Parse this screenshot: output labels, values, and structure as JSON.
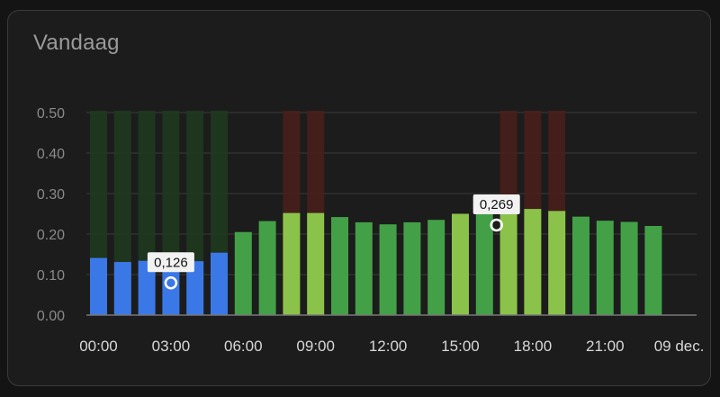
{
  "card": {
    "title": "Vandaag"
  },
  "chart_data": {
    "type": "bar",
    "title": "Vandaag",
    "ylim": [
      0,
      0.5
    ],
    "yticks": [
      "0.00",
      "0.10",
      "0.20",
      "0.30",
      "0.40",
      "0.50"
    ],
    "xtick_labels": [
      "00:00",
      "03:00",
      "06:00",
      "09:00",
      "12:00",
      "15:00",
      "18:00",
      "21:00",
      "09 dec."
    ],
    "hours": [
      0,
      1,
      2,
      3,
      4,
      5,
      6,
      7,
      8,
      9,
      10,
      11,
      12,
      13,
      14,
      15,
      16,
      17,
      18,
      19,
      20,
      21,
      22,
      23
    ],
    "values": [
      0.141,
      0.131,
      0.134,
      0.126,
      0.133,
      0.154,
      0.205,
      0.232,
      0.252,
      0.252,
      0.242,
      0.229,
      0.224,
      0.229,
      0.235,
      0.25,
      0.249,
      0.269,
      0.262,
      0.257,
      0.243,
      0.233,
      0.23,
      0.22
    ],
    "price_level": [
      "low",
      "low",
      "low",
      "low",
      "low",
      "low",
      "normal",
      "normal",
      "high",
      "high",
      "normal",
      "normal",
      "normal",
      "normal",
      "normal",
      "high",
      "normal",
      "high",
      "high",
      "high",
      "normal",
      "normal",
      "normal",
      "normal"
    ],
    "background_bands": [
      "green",
      "green",
      "green",
      "green",
      "green",
      "green",
      "none",
      "none",
      "red",
      "red",
      "none",
      "none",
      "none",
      "none",
      "none",
      "none",
      "none",
      "red",
      "red",
      "red",
      "none",
      "none",
      "none",
      "none"
    ],
    "colors": {
      "low": "#3b78e7",
      "normal": "#43a047",
      "high": "#8bc34a",
      "band_green": "#1f3a1f",
      "band_red": "#4a1f1a",
      "grid": "#3a3a3a",
      "axis": "#777777"
    },
    "data_labels": [
      {
        "hour": 3,
        "text": "0,126"
      },
      {
        "hour": 16.5,
        "text": "0,269"
      }
    ]
  }
}
